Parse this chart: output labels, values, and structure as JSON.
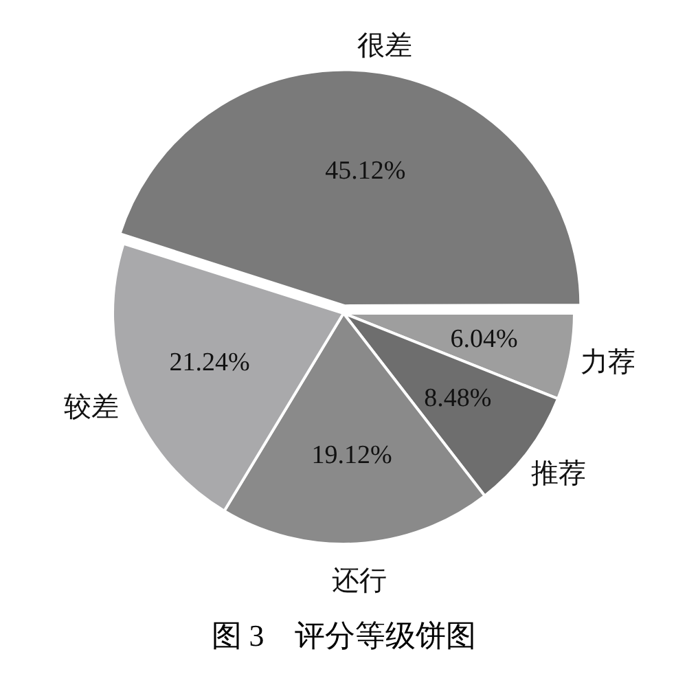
{
  "chart_data": {
    "type": "pie",
    "categories": [
      "力荐",
      "推荐",
      "还行",
      "较差",
      "很差"
    ],
    "values": [
      6.04,
      8.48,
      19.12,
      21.24,
      45.12
    ],
    "colors": [
      "#9e9e9e",
      "#6e6e6e",
      "#8a8a8a",
      "#a9a9ab",
      "#7a7a7a"
    ],
    "value_labels": [
      "6.04%",
      "8.48%",
      "19.12%",
      "21.24%",
      "45.12%"
    ],
    "legend": false,
    "annotations": [
      "图 3　评分等级饼图"
    ]
  }
}
